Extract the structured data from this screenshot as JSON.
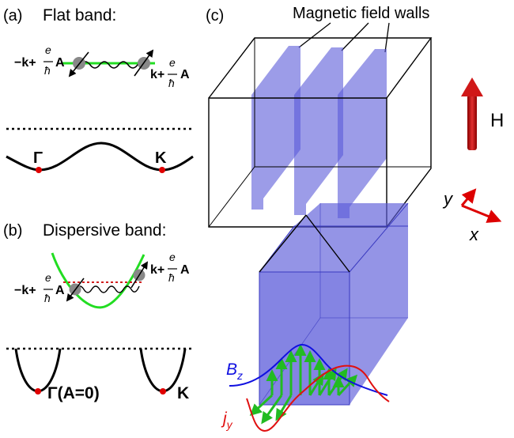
{
  "panel_a": {
    "tag": "(a)",
    "title": "Flat band:",
    "left_k": "−k+",
    "frac_num": "e",
    "frac_den": "ħ",
    "vec_A": "A",
    "right_k": "k+",
    "gamma": "Γ",
    "K": "K"
  },
  "panel_b": {
    "tag": "(b)",
    "title": "Dispersive band:",
    "left_k": "−k+",
    "frac_num": "e",
    "frac_den": "ħ",
    "vec_A": "A",
    "right_k": "k+",
    "gamma_label": "Γ(",
    "gamma_A": "A=0",
    "gamma_close": ")",
    "K": "K"
  },
  "panel_c": {
    "tag": "(c)",
    "walls_label": "Magnetic field walls",
    "H_label": "H",
    "y_label": "y",
    "x_label": "x",
    "Bz_main": "B",
    "Bz_sub": "z",
    "jy_main": "j",
    "jy_sub": "y"
  },
  "colors": {
    "wall": "#5a5ad8",
    "green": "#22dd22",
    "red": "#cc0000",
    "blue_curve": "#1010e0",
    "red_curve": "#e01010",
    "arrow_green": "#22bb22"
  }
}
